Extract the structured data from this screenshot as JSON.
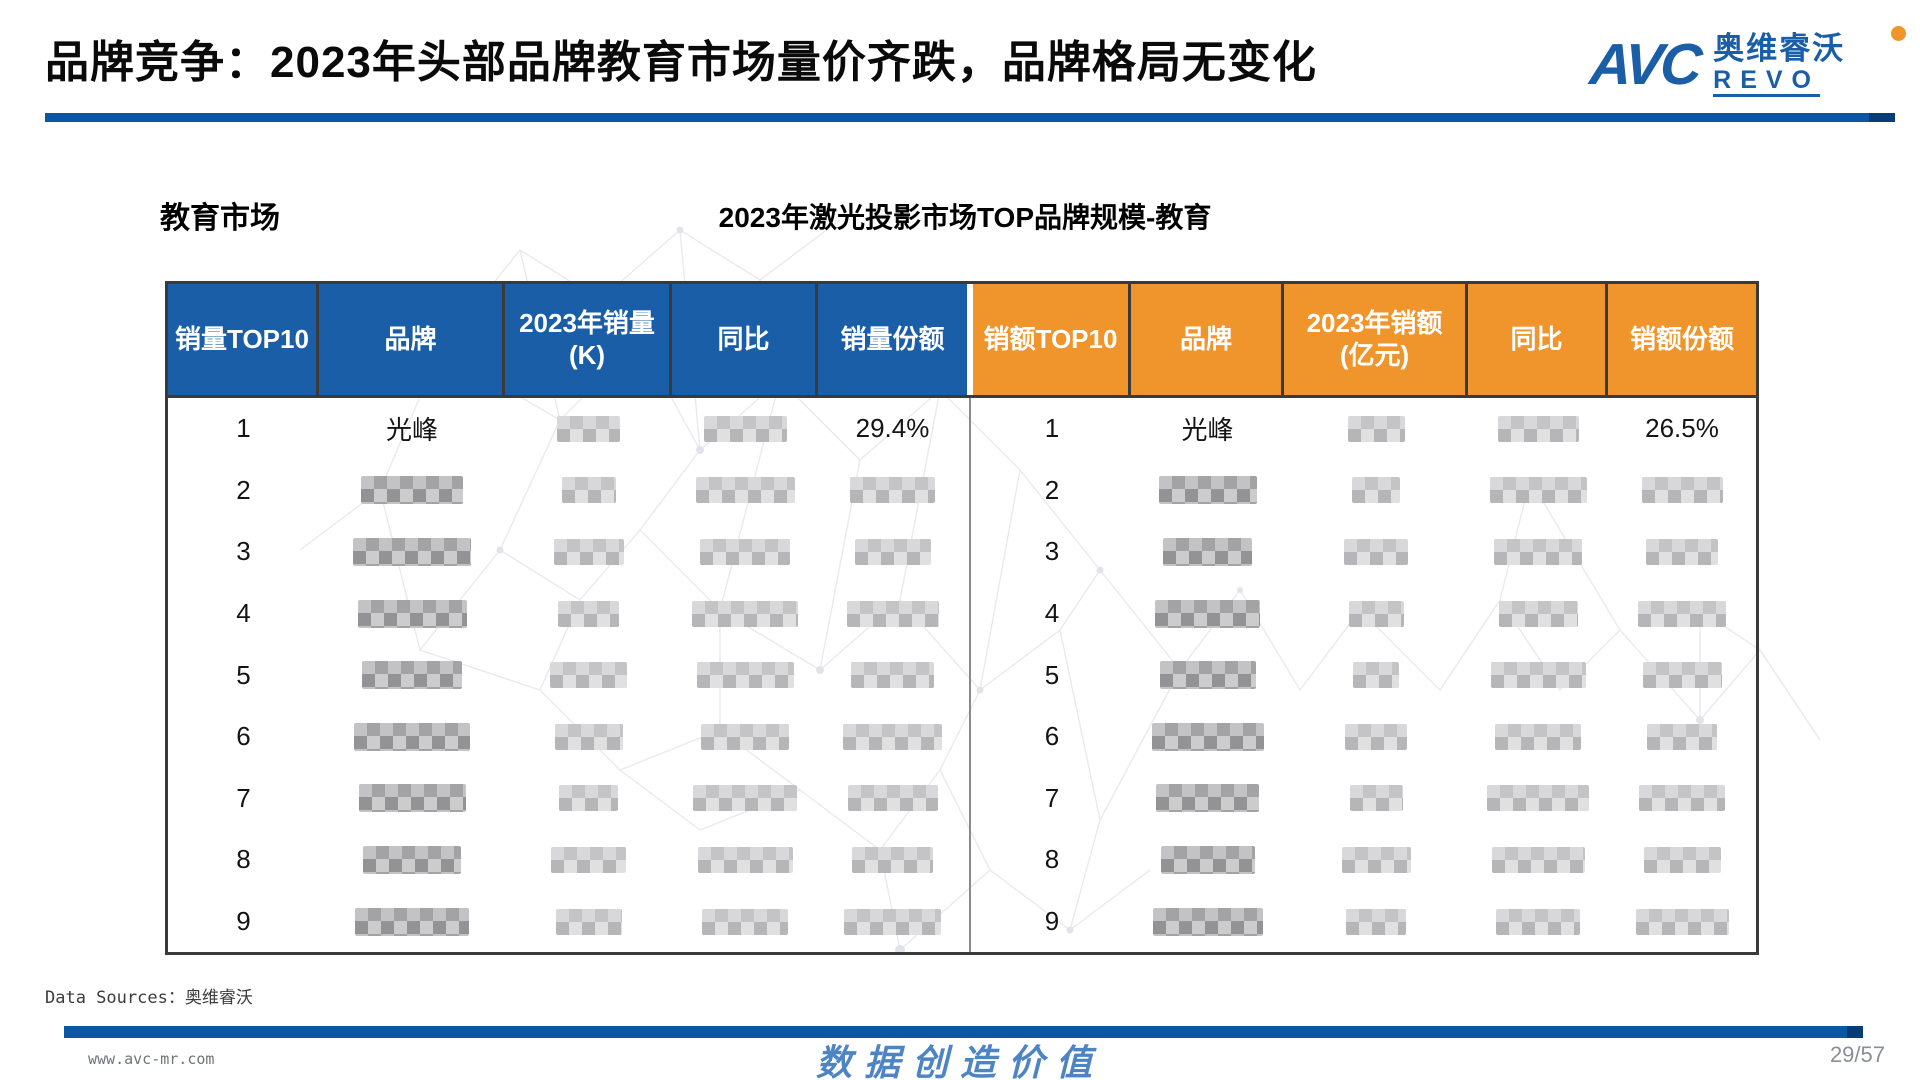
{
  "header": {
    "title": "品牌竞争：2023年头部品牌教育市场量价齐跌，品牌格局无变化",
    "logo": {
      "avc": "AVC",
      "cn": "奥维睿沃",
      "revo": "REVO"
    }
  },
  "section": {
    "market_label": "教育市场",
    "table_title": "2023年激光投影市场TOP品牌规模-教育"
  },
  "table": {
    "columns_left": [
      {
        "label": "销量TOP10",
        "sub": ""
      },
      {
        "label": "品牌",
        "sub": ""
      },
      {
        "label": "2023年销量",
        "sub": "(K)"
      },
      {
        "label": "同比",
        "sub": ""
      },
      {
        "label": "销量份额",
        "sub": ""
      }
    ],
    "columns_right": [
      {
        "label": "销额TOP10",
        "sub": ""
      },
      {
        "label": "品牌",
        "sub": ""
      },
      {
        "label": "2023年销额",
        "sub": "(亿元)"
      },
      {
        "label": "同比",
        "sub": ""
      },
      {
        "label": "销额份额",
        "sub": ""
      }
    ],
    "rows": [
      {
        "rank": "1",
        "brand": "光峰",
        "sales": null,
        "yoy": null,
        "share": "29.4%",
        "rank2": "1",
        "brand2": "光峰",
        "amount": null,
        "yoy2": null,
        "share2": "26.5%"
      },
      {
        "rank": "2",
        "brand": null,
        "sales": null,
        "yoy": null,
        "share": null,
        "rank2": "2",
        "brand2": null,
        "amount": null,
        "yoy2": null,
        "share2": null
      },
      {
        "rank": "3",
        "brand": null,
        "sales": null,
        "yoy": null,
        "share": null,
        "rank2": "3",
        "brand2": null,
        "amount": null,
        "yoy2": null,
        "share2": null
      },
      {
        "rank": "4",
        "brand": null,
        "sales": null,
        "yoy": null,
        "share": null,
        "rank2": "4",
        "brand2": null,
        "amount": null,
        "yoy2": null,
        "share2": null
      },
      {
        "rank": "5",
        "brand": null,
        "sales": null,
        "yoy": null,
        "share": null,
        "rank2": "5",
        "brand2": null,
        "amount": null,
        "yoy2": null,
        "share2": null
      },
      {
        "rank": "6",
        "brand": null,
        "sales": null,
        "yoy": null,
        "share": null,
        "rank2": "6",
        "brand2": null,
        "amount": null,
        "yoy2": null,
        "share2": null
      },
      {
        "rank": "7",
        "brand": null,
        "sales": null,
        "yoy": null,
        "share": null,
        "rank2": "7",
        "brand2": null,
        "amount": null,
        "yoy2": null,
        "share2": null
      },
      {
        "rank": "8",
        "brand": null,
        "sales": null,
        "yoy": null,
        "share": null,
        "rank2": "8",
        "brand2": null,
        "amount": null,
        "yoy2": null,
        "share2": null
      },
      {
        "rank": "9",
        "brand": null,
        "sales": null,
        "yoy": null,
        "share": null,
        "rank2": "9",
        "brand2": null,
        "amount": null,
        "yoy2": null,
        "share2": null
      }
    ]
  },
  "footer": {
    "data_sources": "Data Sources：奥维睿沃",
    "website": "www.avc-mr.com",
    "slogan": "数据创造价值",
    "page": "29/57"
  },
  "colors": {
    "header_blue": "#1b5ea8",
    "header_orange": "#f0952c",
    "bar_blue": "#0b57a4",
    "logo_orange": "#f0952c"
  }
}
